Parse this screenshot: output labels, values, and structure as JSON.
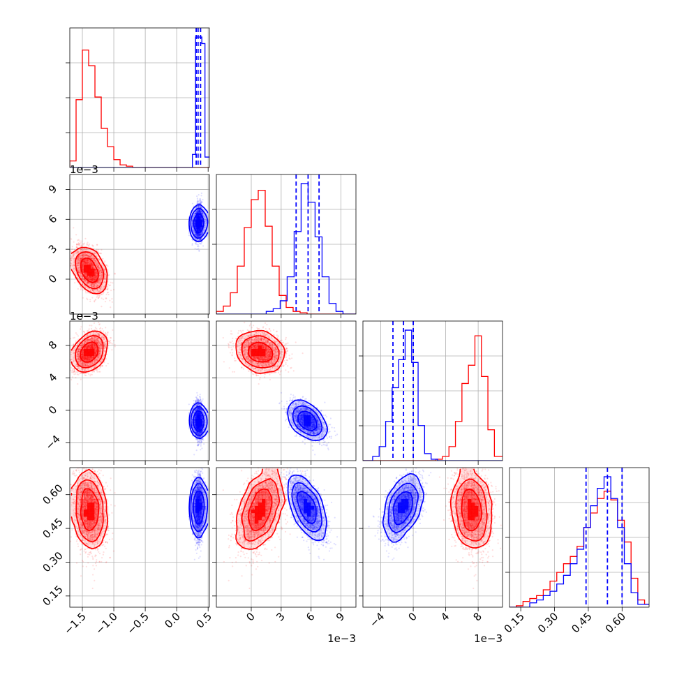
{
  "chart_data": {
    "type": "corner",
    "grid": true,
    "colors": {
      "red": "#ff0000",
      "blue": "#0000ff"
    },
    "variables": [
      {
        "ticks": [
          -1.5,
          -1.0,
          -0.5,
          0.0,
          0.5
        ],
        "tick_labels": [
          "−1.5",
          "−1.0",
          "−0.5",
          "0.0",
          "0.5"
        ],
        "range": [
          -1.7,
          0.52
        ],
        "offset_label": ""
      },
      {
        "ticks": [
          0,
          3,
          6,
          9
        ],
        "tick_labels": [
          "0",
          "3",
          "6",
          "9"
        ],
        "range": [
          -3.5,
          10.5
        ],
        "offset_label": "1e−3"
      },
      {
        "ticks": [
          -4,
          0,
          4,
          8
        ],
        "tick_labels": [
          "−4",
          "0",
          "4",
          "8"
        ],
        "range": [
          -6.2,
          11.0
        ],
        "offset_label": "1e−3"
      },
      {
        "ticks": [
          0.15,
          0.3,
          0.45,
          0.6
        ],
        "tick_labels": [
          "0.15",
          "0.30",
          "0.45",
          "0.60"
        ],
        "range": [
          0.1,
          0.72
        ],
        "offset_label": ""
      }
    ],
    "series": [
      {
        "color": "red",
        "means": [
          -1.38,
          0.9,
          7.2,
          0.53
        ],
        "sds": [
          0.13,
          1.2,
          1.2,
          0.09
        ],
        "corr": [
          [
            1,
            -0.5,
            0.35,
            -0.2
          ],
          [
            -0.5,
            1,
            -0.2,
            0.45
          ],
          [
            0.35,
            -0.2,
            1,
            -0.2
          ],
          [
            -0.2,
            0.45,
            -0.2,
            1
          ]
        ],
        "histograms": [
          {
            "edges": [
              -1.7,
              -1.6,
              -1.5,
              -1.4,
              -1.3,
              -1.2,
              -1.1,
              -1.0,
              -0.9,
              -0.8,
              -0.7,
              -0.5,
              0.52
            ],
            "counts": [
              0.05,
              0.52,
              0.9,
              0.78,
              0.54,
              0.3,
              0.16,
              0.06,
              0.02,
              0.01,
              0,
              0
            ]
          },
          {
            "edges": [
              -3.5,
              -2.8,
              -2.1,
              -1.4,
              -0.7,
              0.0,
              0.7,
              1.4,
              2.1,
              2.8,
              3.5,
              4.2,
              4.9,
              5.6,
              10.5
            ],
            "counts": [
              0.02,
              0.06,
              0.16,
              0.36,
              0.65,
              0.86,
              0.93,
              0.66,
              0.36,
              0.14,
              0.05,
              0.02,
              0.01,
              0
            ]
          },
          {
            "edges": [
              -6.2,
              2.8,
              3.6,
              4.4,
              5.2,
              6.0,
              6.8,
              7.6,
              8.4,
              9.2,
              10.0,
              11.0
            ],
            "counts": [
              0,
              0.01,
              0.03,
              0.1,
              0.28,
              0.55,
              0.68,
              0.89,
              0.6,
              0.22,
              0.03
            ]
          },
          {
            "edges": [
              0.1,
              0.13,
              0.16,
              0.19,
              0.22,
              0.25,
              0.28,
              0.31,
              0.34,
              0.37,
              0.4,
              0.43,
              0.46,
              0.49,
              0.52,
              0.55,
              0.58,
              0.61,
              0.64,
              0.67,
              0.7,
              0.72
            ],
            "counts": [
              0,
              0.01,
              0.04,
              0.06,
              0.08,
              0.12,
              0.18,
              0.24,
              0.3,
              0.35,
              0.42,
              0.55,
              0.65,
              0.75,
              0.8,
              0.74,
              0.6,
              0.45,
              0.2,
              0.05,
              0.02
            ]
          }
        ]
      },
      {
        "color": "blue",
        "means": [
          0.35,
          5.6,
          -1.3,
          0.54
        ],
        "sds": [
          0.035,
          0.9,
          1.1,
          0.07
        ],
        "corr": [
          [
            1,
            0.1,
            -0.1,
            0.05
          ],
          [
            0.1,
            1,
            -0.5,
            -0.6
          ],
          [
            -0.1,
            -0.5,
            1,
            0.45
          ],
          [
            0.05,
            -0.6,
            0.45,
            1
          ]
        ],
        "histograms": [
          {
            "edges": [
              -1.7,
              0.25,
              0.3,
              0.35,
              0.4,
              0.45,
              0.52
            ],
            "counts": [
              0,
              0.1,
              1.0,
              1.0,
              0.95,
              0.08
            ]
          },
          {
            "edges": [
              -3.5,
              1.5,
              2.2,
              2.9,
              3.6,
              4.3,
              5.0,
              5.7,
              6.4,
              7.1,
              7.8,
              8.5,
              9.2,
              10.5
            ],
            "counts": [
              0,
              0.02,
              0.04,
              0.1,
              0.28,
              0.62,
              0.98,
              0.84,
              0.58,
              0.28,
              0.08,
              0.02,
              0
            ]
          },
          {
            "edges": [
              -6.2,
              -5.0,
              -4.2,
              -3.4,
              -2.6,
              -1.8,
              -1.0,
              -0.2,
              0.6,
              1.4,
              2.2,
              3.0,
              11.0
            ],
            "counts": [
              0,
              0.03,
              0.1,
              0.28,
              0.52,
              0.72,
              0.93,
              0.7,
              0.25,
              0.05,
              0.01,
              0
            ]
          },
          {
            "edges": [
              0.1,
              0.19,
              0.22,
              0.25,
              0.28,
              0.31,
              0.34,
              0.37,
              0.4,
              0.43,
              0.46,
              0.49,
              0.52,
              0.55,
              0.58,
              0.61,
              0.64,
              0.67,
              0.72
            ],
            "counts": [
              0,
              0.03,
              0.05,
              0.08,
              0.11,
              0.16,
              0.22,
              0.3,
              0.4,
              0.55,
              0.7,
              0.82,
              0.9,
              0.75,
              0.55,
              0.3,
              0.1,
              0.02
            ]
          }
        ],
        "quantiles": [
          [
            0.31,
            0.34,
            0.38
          ],
          [
            4.5,
            5.7,
            6.8
          ],
          [
            -2.5,
            -1.2,
            0.0
          ],
          [
            0.44,
            0.535,
            0.6
          ]
        ]
      }
    ]
  }
}
